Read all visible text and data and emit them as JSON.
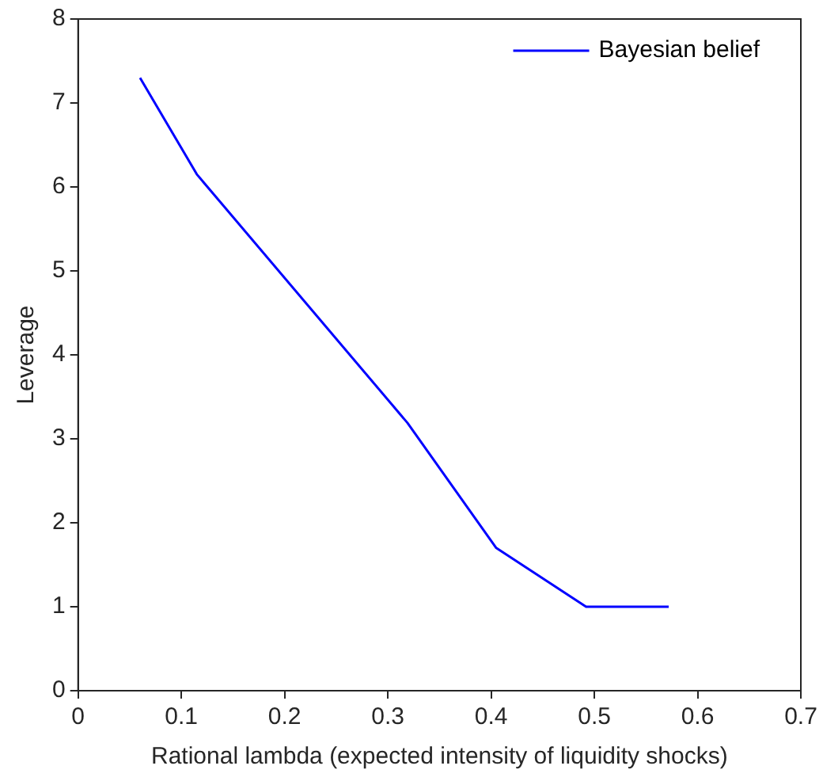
{
  "chart_data": {
    "type": "line",
    "xlabel": "Rational lambda (expected intensity of liquidity shocks)",
    "ylabel": "Leverage",
    "x": [
      0.06,
      0.115,
      0.319,
      0.405,
      0.492,
      0.572
    ],
    "series": [
      {
        "name": "Bayesian belief",
        "color": "#0000ff",
        "values": [
          7.3,
          6.15,
          3.19,
          1.7,
          1.0,
          1.0
        ]
      }
    ],
    "xlim": [
      0,
      0.7
    ],
    "xticks": [
      0,
      0.1,
      0.2,
      0.3,
      0.4,
      0.5,
      0.6,
      0.7
    ],
    "ylim": [
      0,
      8
    ],
    "yticks": [
      0,
      1,
      2,
      3,
      4,
      5,
      6,
      7,
      8
    ],
    "grid": false,
    "legend": "top right",
    "marker": "none",
    "line_style": "solid"
  }
}
